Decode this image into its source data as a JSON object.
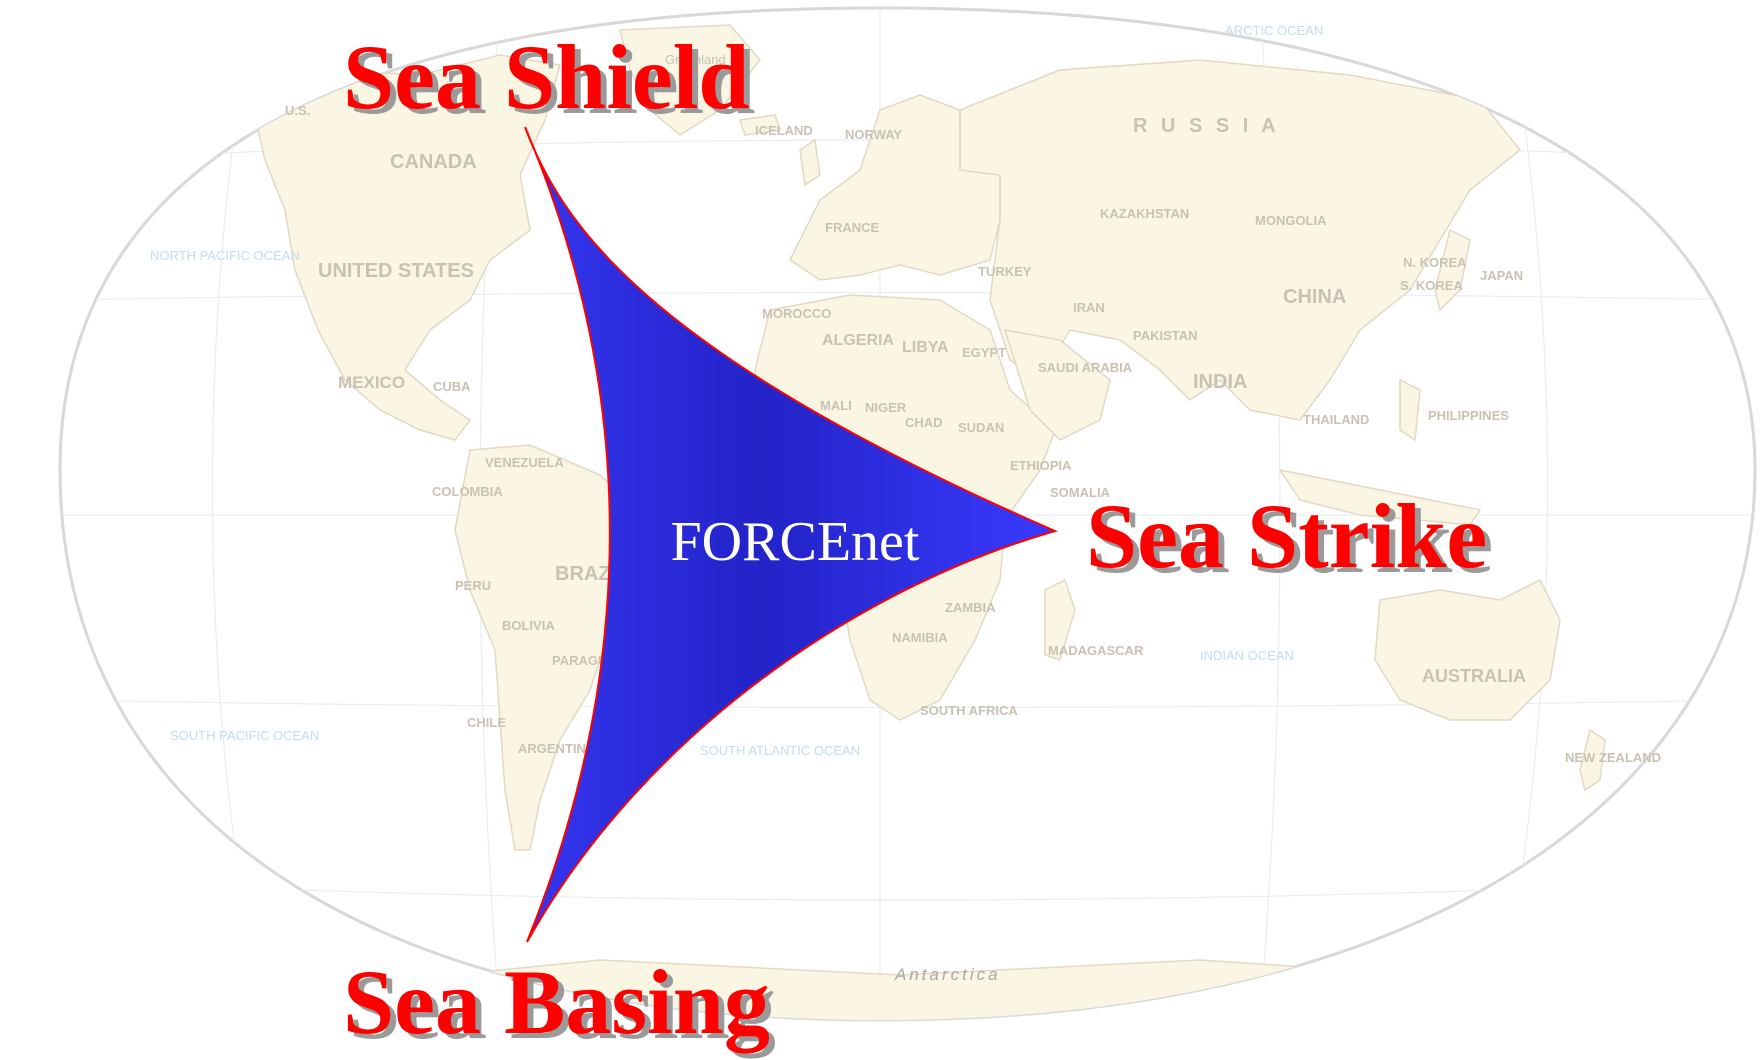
{
  "diagram": {
    "center_label": "FORCEnet",
    "pillars": {
      "top": "Sea Shield",
      "right": "Sea Strike",
      "bottom": "Sea Basing"
    },
    "colors": {
      "pillar_text": "#ff0000",
      "triangle_fill": "#2626d9",
      "triangle_outline": "#ff0000",
      "land": "#fbf6e4",
      "land_border": "#e1d9c3",
      "map_outline": "#d8d8d8"
    }
  },
  "map": {
    "countries": {
      "canada": "CANADA",
      "united_states": "UNITED STATES",
      "mexico": "MEXICO",
      "brazil": "BRAZIL",
      "peru": "PERU",
      "colombia": "COLOMBIA",
      "bolivia": "BOLIVIA",
      "chile": "CHILE",
      "argentina": "ARGENTINA",
      "russia": "R U S S I A",
      "china": "CHINA",
      "india": "INDIA",
      "kazakhstan": "KAZAKHSTAN",
      "mongolia": "MONGOLIA",
      "algeria": "ALGERIA",
      "libya": "LIBYA",
      "sudan": "SUDAN",
      "egypt": "EGYPT",
      "australia": "AUSTRALIA",
      "new_zealand": "NEW ZEALAND",
      "japan": "JAPAN",
      "philippines": "PHILIPPINES",
      "iran": "IRAN",
      "saudi_arabia": "SAUDI ARABIA",
      "madagascar": "MADAGASCAR",
      "south_africa": "SOUTH AFRICA",
      "greenland": "Greenland",
      "iceland": "ICELAND",
      "norway": "NORWAY",
      "france": "FRANCE",
      "somalia": "SOMALIA",
      "namibia": "NAMIBIA",
      "zambia": "ZAMBIA",
      "turkey": "TURKEY",
      "morocco": "MOROCCO",
      "venezuela": "VENEZUELA",
      "paraguay": "PARAGUAY",
      "ethiopia": "ETHIOPIA",
      "chad": "CHAD",
      "niger": "NIGER",
      "mali": "MALI",
      "cuba": "CUBA",
      "thailand": "THAILAND",
      "pakistan": "PAKISTAN",
      "n_korea": "N. KOREA",
      "s_korea": "S. KOREA",
      "us_alaska": "U.S."
    },
    "oceans": {
      "north_pacific": "NORTH PACIFIC OCEAN",
      "south_pacific": "SOUTH PACIFIC OCEAN",
      "south_atlantic": "SOUTH ATLANTIC OCEAN",
      "indian": "INDIAN OCEAN",
      "arctic": "ARCTIC OCEAN"
    },
    "antarctica": "Antarctica"
  }
}
